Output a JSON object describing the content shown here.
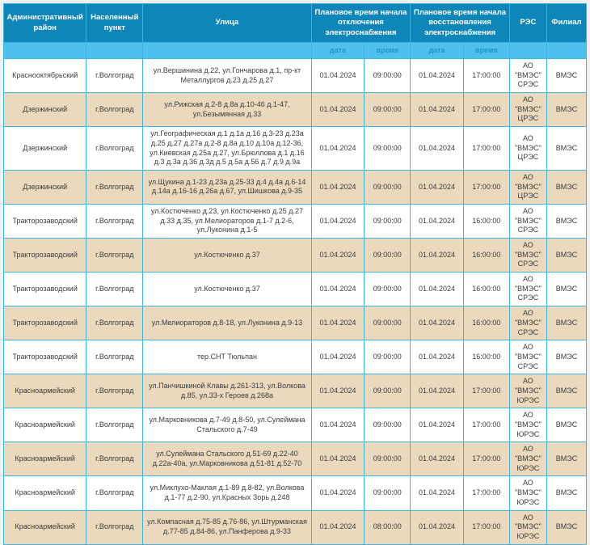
{
  "page": {
    "background": "#f0f0f0"
  },
  "table": {
    "colors": {
      "header_bg": "#0e86ba",
      "header_text": "#ffffff",
      "subheader_bg": "#4ec0ee",
      "subheader_text": "#1e95c9",
      "border": "#3ab4e3",
      "row_bg": "#ffffff",
      "row_alt_bg": "#ead9bd",
      "body_text": "#3d3d3d"
    },
    "columns": [
      {
        "label": "Административный район"
      },
      {
        "label": "Населенный пункт"
      },
      {
        "label": "Улица"
      },
      {
        "label": "Плановое время начала отключения электроснабжения",
        "children": [
          "дата",
          "время"
        ]
      },
      {
        "label": "Плановое время начала восстановления электроснабжения",
        "children": [
          "дата",
          "время"
        ]
      },
      {
        "label": "РЭС"
      },
      {
        "label": "Филиал"
      }
    ],
    "subheader": [
      "",
      "",
      "",
      "дата",
      "время",
      "дата",
      "время",
      "",
      ""
    ],
    "rows": [
      [
        "Краснооктябрьский",
        "г.Волгоград",
        "ул.Вершинина д.22, ул.Гончарова д.1, пр-кт Металлургов д.23 д.25 д.27",
        "01.04.2024",
        "09:00:00",
        "01.04.2024",
        "17:00:00",
        "АО \"ВМЭС\" СРЭС",
        "ВМЭС"
      ],
      [
        "Дзержинский",
        "г.Волгоград",
        "ул.Рижская д.2-8 д.8а д.10-46 д.1-47, ул.Безымянная д.33",
        "01.04.2024",
        "09:00:00",
        "01.04.2024",
        "17:00:00",
        "АО \"ВМЭС\" ЦРЭС",
        "ВМЭС"
      ],
      [
        "Дзержинский",
        "г.Волгоград",
        "ул.Географическая д.1 д.1а д.16 д.3-23 д.23а д.25 д.27 д.27а д.2-8 д.8а д.10 д.10а д.12-36, ул.Киевская д.25а д.27, ул.Брюллова д.1 д.16 д.3 д.3а д.36 д.3д д.5 д.5а д.56 д.7 д.9 д.9а",
        "01.04.2024",
        "09:00:00",
        "01.04.2024",
        "17:00:00",
        "АО \"ВМЭС\" ЦРЭС",
        "ВМЭС"
      ],
      [
        "Дзержинский",
        "г.Волгоград",
        "ул.Щукина д.1-23 д.23а д.25-33 д.4 д.4а д.6-14 д.14а д.16-16 д.26а д.67, ул.Шишкова д.9-35",
        "01.04.2024",
        "09:00:00",
        "01.04.2024",
        "17:00:00",
        "АО \"ВМЭС\" ЦРЭС",
        "ВМЭС"
      ],
      [
        "Тракторозаводский",
        "г.Волгоград",
        "ул.Костюченко д.23, ул.Костюченко д.25 д.27 д.33 д.35, ул.Мелиораторов д.1-7 д.2-6, ул.Луконина д.1-5",
        "01.04.2024",
        "09:00:00",
        "01.04.2024",
        "16:00:00",
        "АО \"ВМЭС\" СРЭС",
        "ВМЭС"
      ],
      [
        "Тракторозаводский",
        "г.Волгоград",
        "ул.Костюченко д.37",
        "01.04.2024",
        "09:00:00",
        "01.04.2024",
        "16:00:00",
        "АО \"ВМЭС\" СРЭС",
        "ВМЭС"
      ],
      [
        "Тракторозаводский",
        "г.Волгоград",
        "ул.Костюченко д.37",
        "01.04.2024",
        "09:00:00",
        "01.04.2024",
        "16:00:00",
        "АО \"ВМЭС\" СРЭС",
        "ВМЭС"
      ],
      [
        "Тракторозаводский",
        "г.Волгоград",
        "ул.Мелиораторов д.8-18, ул.Луконина д.9-13",
        "01.04.2024",
        "09:00:00",
        "01.04.2024",
        "16:00:00",
        "АО \"ВМЭС\" СРЭС",
        "ВМЭС"
      ],
      [
        "Тракторозаводский",
        "г.Волгоград",
        "тер.СНТ Тюльпан",
        "01.04.2024",
        "09:00:00",
        "01.04.2024",
        "16:00:00",
        "АО \"ВМЭС\" СРЭС",
        "ВМЭС"
      ],
      [
        "Красноармейский",
        "г.Волгоград",
        "ул.Панчишкиной Клавы д.261-313, ул.Волкова д.85, ул.33-х Героев д.268а",
        "01.04.2024",
        "09:00:00",
        "01.04.2024",
        "17:00:00",
        "АО \"ВМЭС\" ЮРЭС",
        "ВМЭС"
      ],
      [
        "Красноармейский",
        "г.Волгоград",
        "ул.Марковникова д.7-49 д.8-50, ул.Сулеймана Стальского д.7-49",
        "01.04.2024",
        "09:00:00",
        "01.04.2024",
        "17:00:00",
        "АО \"ВМЭС\" ЮРЭС",
        "ВМЭС"
      ],
      [
        "Красноармейский",
        "г.Волгоград",
        "ул.Сулеймана Стальского д.51-69 д.22-40 д.22а-40а, ул.Марковникова д.51-81 д.52-70",
        "01.04.2024",
        "09:00:00",
        "01.04.2024",
        "17:00:00",
        "АО \"ВМЭС\" ЮРЭС",
        "ВМЭС"
      ],
      [
        "Красноармейский",
        "г.Волгоград",
        "ул.Миклухо-Маклая д.1-89 д.8-82, ул.Волкова д.1-77 д.2-90, ул.Красных Зорь д.248",
        "01.04.2024",
        "09:00:00",
        "01.04.2024",
        "17:00:00",
        "АО \"ВМЭС\" ЮРЭС",
        "ВМЭС"
      ],
      [
        "Красноармейский",
        "г.Волгоград",
        "ул.Компасная д.75-85 д.76-86, ул.Штурманская д.77-85 д.84-86, ул.Панферова д.9-33",
        "01.04.2024",
        "08:00:00",
        "01.04.2024",
        "17:00:00",
        "АО \"ВМЭС\" ЮРЭС",
        "ВМЭС"
      ]
    ]
  }
}
